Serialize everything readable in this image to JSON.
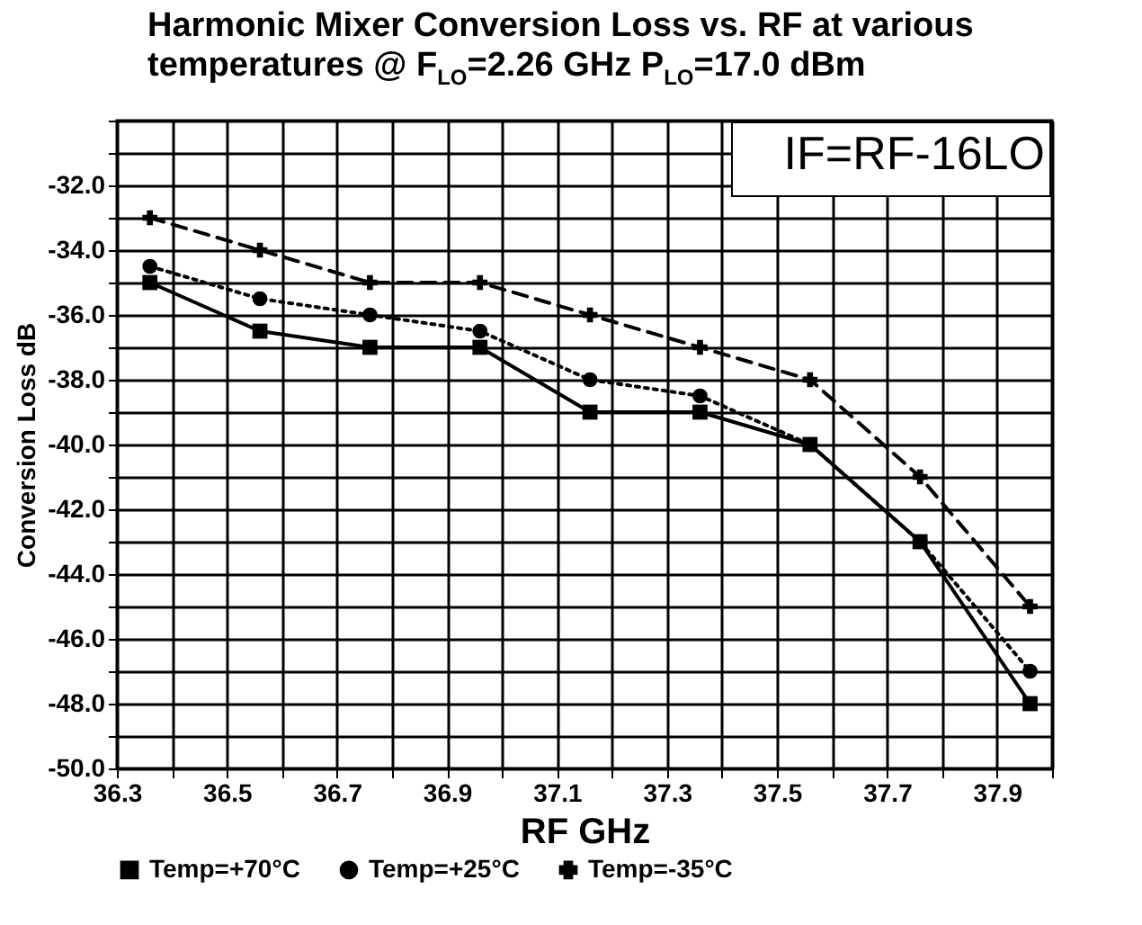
{
  "chart_data": {
    "type": "line",
    "title": "Harmonic Mixer Conversion Loss vs. RF at various temperatures @ F$_{LO}$=2.26 GHz P$_{LO}$=17.0 dBm",
    "xlabel": "RF GHz",
    "ylabel": "Conversion Loss dB",
    "annotations": [
      "IF=RF-16LO"
    ],
    "x": [
      36.36,
      36.56,
      36.76,
      36.96,
      37.16,
      37.36,
      37.56,
      37.76,
      37.96
    ],
    "series": [
      {
        "name": "Temp=+70°C",
        "color": "#000000",
        "marker": "square",
        "line_style": "solid",
        "values": [
          -35,
          -36.5,
          -37,
          -37,
          -39,
          -39,
          -40,
          -43,
          -48
        ]
      },
      {
        "name": "Temp=+25°C",
        "color": "#000000",
        "marker": "circle",
        "line_style": "dotted",
        "values": [
          -34.5,
          -35.5,
          -36,
          -36.5,
          -38,
          -38.5,
          -40,
          -43,
          -47
        ]
      },
      {
        "name": "Temp=-35°C",
        "color": "#000000",
        "marker": "cross",
        "line_style": "dashed",
        "values": [
          -33,
          -34,
          -35,
          -35,
          -36,
          -37,
          -38,
          -41,
          -45
        ]
      }
    ],
    "xlim": [
      36.3,
      38.0
    ],
    "xticks": [
      {
        "value": 36.3,
        "label": "36.3"
      },
      {
        "value": 36.4,
        "label": null
      },
      {
        "value": 36.5,
        "label": "36.5"
      },
      {
        "value": 36.6,
        "label": null
      },
      {
        "value": 36.7,
        "label": "36.7"
      },
      {
        "value": 36.8,
        "label": null
      },
      {
        "value": 36.9,
        "label": "36.9"
      },
      {
        "value": 37.0,
        "label": null
      },
      {
        "value": 37.1,
        "label": "37.1"
      },
      {
        "value": 37.2,
        "label": null
      },
      {
        "value": 37.3,
        "label": "37.3"
      },
      {
        "value": 37.4,
        "label": null
      },
      {
        "value": 37.5,
        "label": "37.5"
      },
      {
        "value": 37.6,
        "label": null
      },
      {
        "value": 37.7,
        "label": "37.7"
      },
      {
        "value": 37.8,
        "label": null
      },
      {
        "value": 37.9,
        "label": "37.9"
      },
      {
        "value": 38.0,
        "label": null
      }
    ],
    "ylim": [
      -50,
      -30
    ],
    "yticks": [
      {
        "value": -50,
        "label": "-50.0"
      },
      {
        "value": -49,
        "label": null
      },
      {
        "value": -48,
        "label": "-48.0"
      },
      {
        "value": -47,
        "label": null
      },
      {
        "value": -46,
        "label": "-46.0"
      },
      {
        "value": -45,
        "label": null
      },
      {
        "value": -44,
        "label": "-44.0"
      },
      {
        "value": -43,
        "label": null
      },
      {
        "value": -42,
        "label": "-42.0"
      },
      {
        "value": -41,
        "label": null
      },
      {
        "value": -40,
        "label": "-40.0"
      },
      {
        "value": -39,
        "label": null
      },
      {
        "value": -38,
        "label": "-38.0"
      },
      {
        "value": -37,
        "label": null
      },
      {
        "value": -36,
        "label": "-36.0"
      },
      {
        "value": -35,
        "label": null
      },
      {
        "value": -34,
        "label": "-34.0"
      },
      {
        "value": -33,
        "label": null
      },
      {
        "value": -32,
        "label": "-32.0"
      },
      {
        "value": -31,
        "label": null
      },
      {
        "value": -30,
        "label": null
      }
    ],
    "grid": true,
    "legend": "bottom"
  }
}
